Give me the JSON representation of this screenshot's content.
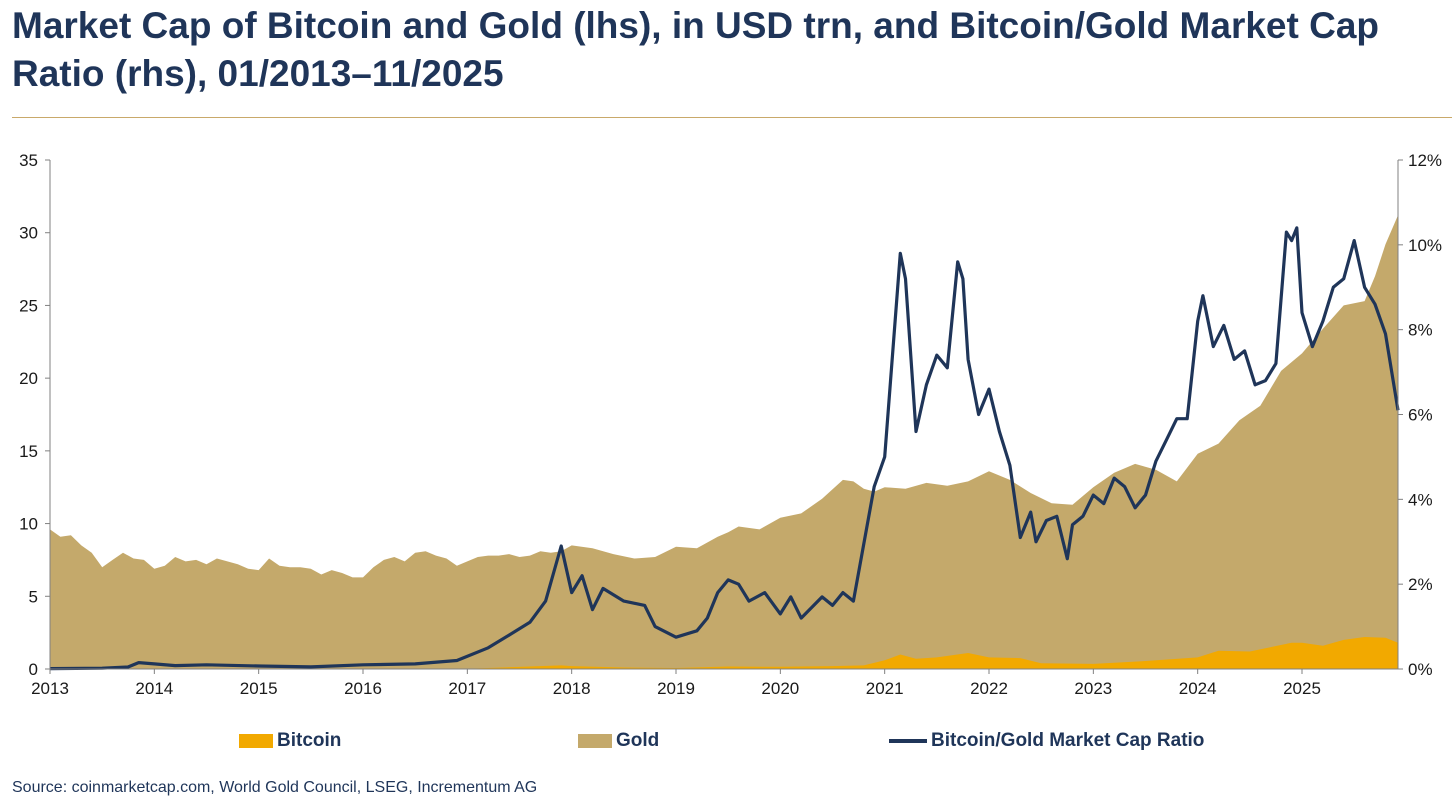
{
  "header": {
    "title": "Market Cap of Bitcoin and Gold (lhs), in USD trn, and Bitcoin/Gold Market Cap Ratio (rhs), 01/2013–11/2025"
  },
  "legend": {
    "bitcoin": "Bitcoin",
    "gold": "Gold",
    "ratio": "Bitcoin/Gold Market Cap Ratio"
  },
  "footer": {
    "source": "Source: coinmarketcap.com, World Gold Council, LSEG, Incrementum AG"
  },
  "colors": {
    "bitcoin": "#f2a900",
    "gold": "#c4a96b",
    "ratio": "#1f3559",
    "axis": "#808080",
    "rule": "#c9a96a"
  },
  "chart_data": {
    "type": "area",
    "period": "01/2013–11/2025",
    "x_unit": "year",
    "xlim": [
      2013,
      2025.92
    ],
    "x_ticks": [
      "2013",
      "2014",
      "2015",
      "2016",
      "2017",
      "2018",
      "2019",
      "2020",
      "2021",
      "2022",
      "2023",
      "2024",
      "2025"
    ],
    "y_left": {
      "label": "USD trn",
      "ylim": [
        0,
        35
      ],
      "ticks": [
        "0",
        "5",
        "10",
        "15",
        "20",
        "25",
        "30",
        "35"
      ]
    },
    "y_right": {
      "label": "",
      "ylim": [
        0,
        12
      ],
      "ticks": [
        "0%",
        "2%",
        "4%",
        "6%",
        "8%",
        "10%",
        "12%"
      ]
    },
    "grid": false,
    "legend_position": "bottom",
    "series": [
      {
        "name": "Gold",
        "type": "area",
        "axis": "left",
        "x": [
          2013,
          2013.1,
          2013.2,
          2013.3,
          2013.4,
          2013.5,
          2013.6,
          2013.7,
          2013.8,
          2013.9,
          2014,
          2014.1,
          2014.2,
          2014.3,
          2014.4,
          2014.5,
          2014.6,
          2014.7,
          2014.8,
          2014.9,
          2015,
          2015.1,
          2015.2,
          2015.3,
          2015.4,
          2015.5,
          2015.6,
          2015.7,
          2015.8,
          2015.9,
          2016,
          2016.1,
          2016.2,
          2016.3,
          2016.4,
          2016.5,
          2016.6,
          2016.7,
          2016.8,
          2016.9,
          2017,
          2017.1,
          2017.2,
          2017.3,
          2017.4,
          2017.5,
          2017.6,
          2017.7,
          2017.8,
          2017.9,
          2018,
          2018.2,
          2018.4,
          2018.6,
          2018.8,
          2019,
          2019.2,
          2019.4,
          2019.5,
          2019.6,
          2019.8,
          2020,
          2020.2,
          2020.4,
          2020.6,
          2020.7,
          2020.8,
          2020.9,
          2021,
          2021.2,
          2021.4,
          2021.6,
          2021.8,
          2022,
          2022.2,
          2022.4,
          2022.6,
          2022.8,
          2023,
          2023.2,
          2023.4,
          2023.6,
          2023.8,
          2024,
          2024.2,
          2024.4,
          2024.6,
          2024.8,
          2025,
          2025.2,
          2025.4,
          2025.6,
          2025.7,
          2025.8,
          2025.92
        ],
        "values": [
          9.6,
          9.1,
          9.2,
          8.5,
          8.0,
          7.0,
          7.5,
          8.0,
          7.6,
          7.5,
          6.9,
          7.1,
          7.7,
          7.4,
          7.5,
          7.2,
          7.6,
          7.4,
          7.2,
          6.9,
          6.8,
          7.6,
          7.1,
          7.0,
          7.0,
          6.9,
          6.5,
          6.8,
          6.6,
          6.3,
          6.3,
          7.0,
          7.5,
          7.7,
          7.4,
          8.0,
          8.1,
          7.8,
          7.6,
          7.1,
          7.4,
          7.7,
          7.8,
          7.8,
          7.9,
          7.7,
          7.8,
          8.1,
          8.0,
          8.1,
          8.5,
          8.3,
          7.9,
          7.6,
          7.7,
          8.4,
          8.3,
          9.1,
          9.4,
          9.8,
          9.6,
          10.4,
          10.7,
          11.7,
          13.0,
          12.9,
          12.4,
          12.2,
          12.5,
          12.4,
          12.8,
          12.6,
          12.9,
          13.6,
          13.0,
          12.1,
          11.4,
          11.3,
          12.5,
          13.5,
          14.1,
          13.7,
          12.9,
          14.8,
          15.5,
          17.1,
          18.1,
          20.5,
          21.7,
          23.4,
          25.0,
          25.3,
          27.0,
          29.2,
          31.2
        ]
      },
      {
        "name": "Bitcoin",
        "type": "area",
        "axis": "left",
        "x": [
          2013,
          2015,
          2016,
          2017,
          2017.9,
          2018,
          2018.5,
          2019,
          2019.5,
          2020,
          2020.5,
          2020.8,
          2021,
          2021.15,
          2021.3,
          2021.5,
          2021.8,
          2022,
          2022.3,
          2022.5,
          2023,
          2023.5,
          2024,
          2024.2,
          2024.5,
          2024.9,
          2025,
          2025.2,
          2025.4,
          2025.6,
          2025.8,
          2025.92
        ],
        "values": [
          0.01,
          0.01,
          0.01,
          0.02,
          0.25,
          0.2,
          0.1,
          0.07,
          0.17,
          0.15,
          0.2,
          0.25,
          0.6,
          1.0,
          0.7,
          0.8,
          1.1,
          0.8,
          0.75,
          0.4,
          0.35,
          0.55,
          0.8,
          1.25,
          1.2,
          1.8,
          1.8,
          1.6,
          2.0,
          2.2,
          2.15,
          1.8
        ]
      },
      {
        "name": "Bitcoin/Gold Market Cap Ratio",
        "type": "line",
        "axis": "right",
        "unit": "%",
        "x": [
          2013,
          2013.5,
          2013.75,
          2013.85,
          2014,
          2014.2,
          2014.5,
          2015,
          2015.5,
          2016,
          2016.5,
          2016.9,
          2017.2,
          2017.4,
          2017.6,
          2017.75,
          2017.9,
          2018,
          2018.1,
          2018.2,
          2018.3,
          2018.5,
          2018.7,
          2018.8,
          2019,
          2019.2,
          2019.3,
          2019.4,
          2019.5,
          2019.6,
          2019.7,
          2019.85,
          2020,
          2020.1,
          2020.2,
          2020.4,
          2020.5,
          2020.6,
          2020.7,
          2020.9,
          2021,
          2021.1,
          2021.15,
          2021.2,
          2021.3,
          2021.4,
          2021.5,
          2021.6,
          2021.7,
          2021.75,
          2021.8,
          2021.9,
          2022,
          2022.1,
          2022.2,
          2022.3,
          2022.4,
          2022.45,
          2022.55,
          2022.65,
          2022.75,
          2022.8,
          2022.9,
          2023,
          2023.1,
          2023.2,
          2023.3,
          2023.4,
          2023.5,
          2023.6,
          2023.7,
          2023.8,
          2023.9,
          2024,
          2024.05,
          2024.15,
          2024.25,
          2024.35,
          2024.45,
          2024.55,
          2024.65,
          2024.75,
          2024.85,
          2024.9,
          2024.95,
          2025,
          2025.1,
          2025.2,
          2025.3,
          2025.4,
          2025.5,
          2025.6,
          2025.7,
          2025.8,
          2025.92
        ],
        "values": [
          0.01,
          0.02,
          0.05,
          0.15,
          0.12,
          0.08,
          0.1,
          0.07,
          0.05,
          0.1,
          0.12,
          0.2,
          0.5,
          0.8,
          1.1,
          1.6,
          2.9,
          1.8,
          2.2,
          1.4,
          1.9,
          1.6,
          1.5,
          1.0,
          0.75,
          0.9,
          1.2,
          1.8,
          2.1,
          2.0,
          1.6,
          1.8,
          1.3,
          1.7,
          1.2,
          1.7,
          1.5,
          1.8,
          1.6,
          4.3,
          5.0,
          8.2,
          9.8,
          9.2,
          5.6,
          6.7,
          7.4,
          7.1,
          9.6,
          9.2,
          7.3,
          6.0,
          6.6,
          5.6,
          4.8,
          3.1,
          3.7,
          3.0,
          3.5,
          3.6,
          2.6,
          3.4,
          3.6,
          4.1,
          3.9,
          4.5,
          4.3,
          3.8,
          4.1,
          4.9,
          5.4,
          5.9,
          5.9,
          8.2,
          8.8,
          7.6,
          8.1,
          7.3,
          7.5,
          6.7,
          6.8,
          7.2,
          10.3,
          10.1,
          10.4,
          8.4,
          7.6,
          8.2,
          9.0,
          9.2,
          10.1,
          9.0,
          8.6,
          7.9,
          6.1
        ]
      }
    ]
  }
}
